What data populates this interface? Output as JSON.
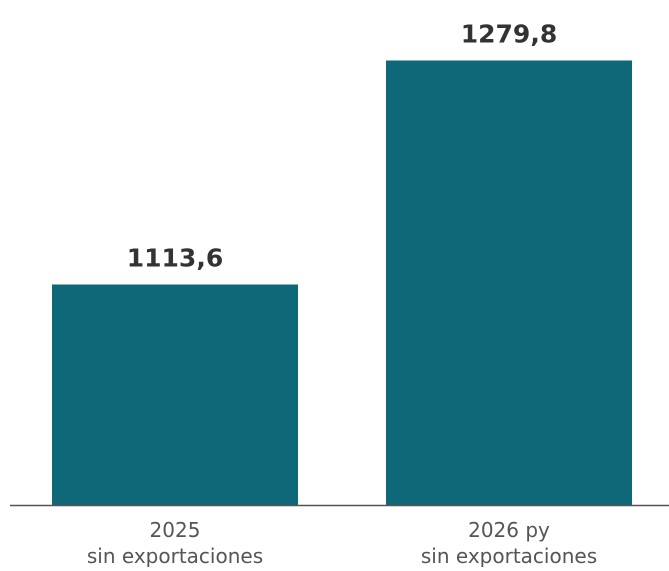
{
  "chart_data": {
    "type": "bar",
    "title": "",
    "xlabel": "",
    "ylabel": "",
    "categories": [
      [
        "2025",
        "sin exportaciones"
      ],
      [
        "2026 py",
        "sin exportaciones"
      ]
    ],
    "values": [
      1113.6,
      1279.8
    ],
    "value_labels": [
      "1113,6",
      "1279,8"
    ],
    "ylim": [
      950,
      1295
    ],
    "grid": false,
    "legend": "none",
    "colors": {
      "bar": "#0E6878",
      "axis": "#555555",
      "value_text": "#333333",
      "category_text": "#555555"
    }
  }
}
